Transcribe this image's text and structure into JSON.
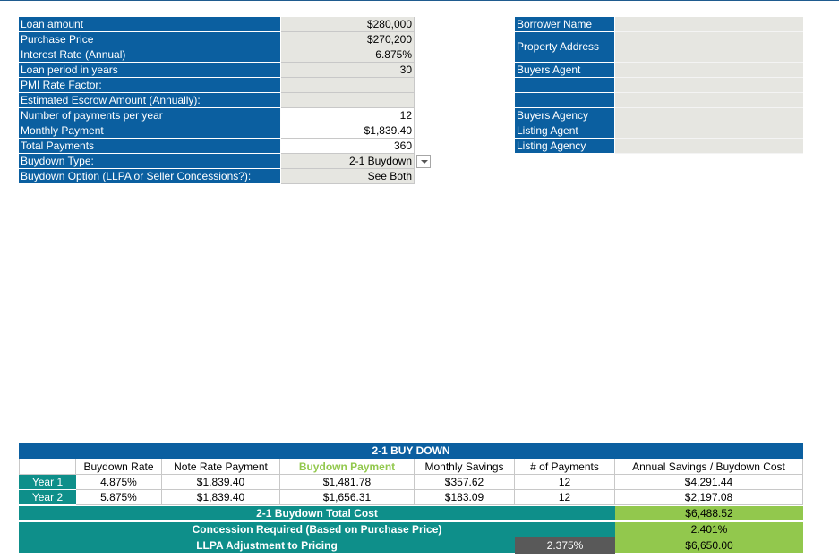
{
  "loan": {
    "rows": [
      {
        "label": "Loan amount",
        "value": "$280,000"
      },
      {
        "label": "Purchase Price",
        "value": "$270,200"
      },
      {
        "label": "Interest Rate (Annual)",
        "value": "6.875%"
      },
      {
        "label": "Loan period in years",
        "value": "30"
      },
      {
        "label": "PMI Rate Factor:",
        "value": ""
      },
      {
        "label": "Estimated Escrow Amount (Annually):",
        "value": ""
      },
      {
        "label": "Number of payments per year",
        "value": "12"
      },
      {
        "label": "Monthly Payment",
        "value": "$1,839.40"
      },
      {
        "label": "Total Payments",
        "value": "360"
      },
      {
        "label": "Buydown Type:",
        "value": "2-1 Buydown"
      },
      {
        "label": "Buydown Option (LLPA or Seller Concessions?):",
        "value": "See Both"
      }
    ]
  },
  "info": {
    "borrower_name": "Borrower Name",
    "property_address": "Property Address",
    "buyers_agent": "Buyers Agent",
    "buyers_agency": "Buyers Agency",
    "listing_agent": "Listing Agent",
    "listing_agency": "Listing Agency"
  },
  "buydown": {
    "title": "2-1 BUY DOWN",
    "headers": {
      "rate": "Buydown Rate",
      "note": "Note Rate Payment",
      "payment": "Buydown Payment",
      "savings": "Monthly Savings",
      "count": "# of Payments",
      "annual": "Annual  Savings / Buydown Cost"
    },
    "rows": [
      {
        "year": "Year 1",
        "rate": "4.875%",
        "note": "$1,839.40",
        "payment": "$1,481.78",
        "savings": "$357.62",
        "count": "12",
        "annual": "$4,291.44"
      },
      {
        "year": "Year 2",
        "rate": "5.875%",
        "note": "$1,839.40",
        "payment": "$1,656.31",
        "savings": "$183.09",
        "count": "12",
        "annual": "$2,197.08"
      }
    ],
    "total_label": "2-1 Buydown Total Cost",
    "total_value": "$6,488.52",
    "concession_label": "Concession Required (Based on Purchase Price)",
    "concession_value": "2.401%",
    "llpa_label": "LLPA Adjustment to Pricing",
    "llpa_pct": "2.375%",
    "llpa_value": "$6,650.00"
  },
  "colors": {
    "header_blue": "#0b5fa0",
    "teal": "#0e8f8a",
    "green": "#92c84d",
    "buydown_payment_text": "#92c84d",
    "input_gray": "#e6e6e1"
  }
}
